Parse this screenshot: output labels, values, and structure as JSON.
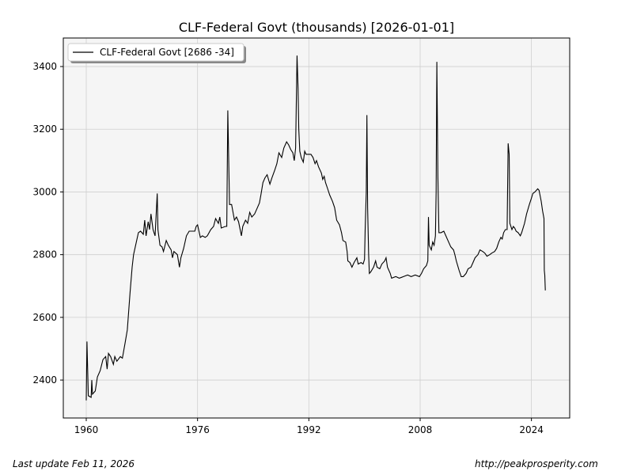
{
  "chart_data": {
    "type": "line",
    "title": "CLF-Federal Govt (thousands) [2026-01-01]",
    "xlabel": "",
    "ylabel": "",
    "xlim": [
      1956.7,
      2029.5
    ],
    "ylim": [
      2279,
      3491
    ],
    "xticks": [
      1960,
      1976,
      1992,
      2008,
      2024
    ],
    "yticks": [
      2400,
      2600,
      2800,
      3000,
      3200,
      3400
    ],
    "grid": true,
    "legend_position": "top-left",
    "series": [
      {
        "name": "CLF-Federal Govt [2686 -34]",
        "color": "#000000",
        "points": [
          [
            1960.0,
            2335
          ],
          [
            1960.1,
            2523
          ],
          [
            1960.3,
            2350
          ],
          [
            1960.7,
            2345
          ],
          [
            1960.8,
            2400
          ],
          [
            1960.9,
            2355
          ],
          [
            1961.3,
            2365
          ],
          [
            1961.6,
            2410
          ],
          [
            1962.0,
            2430
          ],
          [
            1962.4,
            2465
          ],
          [
            1962.8,
            2475
          ],
          [
            1963.0,
            2435
          ],
          [
            1963.2,
            2485
          ],
          [
            1963.5,
            2475
          ],
          [
            1963.9,
            2450
          ],
          [
            1964.1,
            2475
          ],
          [
            1964.4,
            2460
          ],
          [
            1964.9,
            2475
          ],
          [
            1965.2,
            2470
          ],
          [
            1965.6,
            2520
          ],
          [
            1965.9,
            2560
          ],
          [
            1966.3,
            2680
          ],
          [
            1966.6,
            2760
          ],
          [
            1966.8,
            2800
          ],
          [
            1967.2,
            2840
          ],
          [
            1967.5,
            2870
          ],
          [
            1967.8,
            2875
          ],
          [
            1968.2,
            2865
          ],
          [
            1968.4,
            2910
          ],
          [
            1968.6,
            2860
          ],
          [
            1968.9,
            2905
          ],
          [
            1969.1,
            2880
          ],
          [
            1969.3,
            2930
          ],
          [
            1969.6,
            2880
          ],
          [
            1969.9,
            2860
          ],
          [
            1970.2,
            2995
          ],
          [
            1970.3,
            2880
          ],
          [
            1970.6,
            2830
          ],
          [
            1970.9,
            2825
          ],
          [
            1971.1,
            2810
          ],
          [
            1971.5,
            2845
          ],
          [
            1971.8,
            2830
          ],
          [
            1972.2,
            2815
          ],
          [
            1972.4,
            2790
          ],
          [
            1972.6,
            2810
          ],
          [
            1973.1,
            2800
          ],
          [
            1973.4,
            2760
          ],
          [
            1973.6,
            2790
          ],
          [
            1974.0,
            2820
          ],
          [
            1974.4,
            2860
          ],
          [
            1974.8,
            2875
          ],
          [
            1975.2,
            2875
          ],
          [
            1975.6,
            2875
          ],
          [
            1975.8,
            2890
          ],
          [
            1976.0,
            2895
          ],
          [
            1976.4,
            2855
          ],
          [
            1976.7,
            2860
          ],
          [
            1977.1,
            2855
          ],
          [
            1977.4,
            2860
          ],
          [
            1977.9,
            2880
          ],
          [
            1978.3,
            2890
          ],
          [
            1978.6,
            2915
          ],
          [
            1979.0,
            2900
          ],
          [
            1979.2,
            2920
          ],
          [
            1979.4,
            2885
          ],
          [
            1980.0,
            2890
          ],
          [
            1980.2,
            2890
          ],
          [
            1980.35,
            3260
          ],
          [
            1980.5,
            3080
          ],
          [
            1980.6,
            2960
          ],
          [
            1980.9,
            2960
          ],
          [
            1981.3,
            2910
          ],
          [
            1981.6,
            2920
          ],
          [
            1981.9,
            2905
          ],
          [
            1982.3,
            2860
          ],
          [
            1982.5,
            2890
          ],
          [
            1982.9,
            2910
          ],
          [
            1983.2,
            2900
          ],
          [
            1983.5,
            2935
          ],
          [
            1983.8,
            2920
          ],
          [
            1984.2,
            2930
          ],
          [
            1984.6,
            2950
          ],
          [
            1984.9,
            2965
          ],
          [
            1985.1,
            2990
          ],
          [
            1985.4,
            3030
          ],
          [
            1985.7,
            3045
          ],
          [
            1986.0,
            3055
          ],
          [
            1986.4,
            3025
          ],
          [
            1986.7,
            3045
          ],
          [
            1987.1,
            3070
          ],
          [
            1987.4,
            3090
          ],
          [
            1987.7,
            3125
          ],
          [
            1988.1,
            3110
          ],
          [
            1988.4,
            3140
          ],
          [
            1988.8,
            3160
          ],
          [
            1989.1,
            3150
          ],
          [
            1989.4,
            3135
          ],
          [
            1989.7,
            3125
          ],
          [
            1989.9,
            3100
          ],
          [
            1990.1,
            3140
          ],
          [
            1990.3,
            3435
          ],
          [
            1990.45,
            3330
          ],
          [
            1990.55,
            3200
          ],
          [
            1990.7,
            3130
          ],
          [
            1990.9,
            3110
          ],
          [
            1991.2,
            3095
          ],
          [
            1991.4,
            3130
          ],
          [
            1991.6,
            3120
          ],
          [
            1991.9,
            3120
          ],
          [
            1992.3,
            3120
          ],
          [
            1992.6,
            3110
          ],
          [
            1992.9,
            3090
          ],
          [
            1993.1,
            3100
          ],
          [
            1993.4,
            3080
          ],
          [
            1993.8,
            3060
          ],
          [
            1994.0,
            3040
          ],
          [
            1994.2,
            3050
          ],
          [
            1994.4,
            3030
          ],
          [
            1994.7,
            3010
          ],
          [
            1995.0,
            2990
          ],
          [
            1995.4,
            2970
          ],
          [
            1995.7,
            2950
          ],
          [
            1996.0,
            2910
          ],
          [
            1996.4,
            2895
          ],
          [
            1996.7,
            2870
          ],
          [
            1996.9,
            2845
          ],
          [
            1997.3,
            2840
          ],
          [
            1997.5,
            2810
          ],
          [
            1997.6,
            2780
          ],
          [
            1997.9,
            2775
          ],
          [
            1998.2,
            2760
          ],
          [
            1998.5,
            2775
          ],
          [
            1998.9,
            2790
          ],
          [
            1999.1,
            2770
          ],
          [
            1999.5,
            2775
          ],
          [
            1999.8,
            2770
          ],
          [
            2000.0,
            2785
          ],
          [
            2000.1,
            2880
          ],
          [
            2000.25,
            3000
          ],
          [
            2000.35,
            3245
          ],
          [
            2000.45,
            2950
          ],
          [
            2000.6,
            2800
          ],
          [
            2000.7,
            2740
          ],
          [
            2000.9,
            2745
          ],
          [
            2001.3,
            2760
          ],
          [
            2001.6,
            2780
          ],
          [
            2001.8,
            2760
          ],
          [
            2002.2,
            2755
          ],
          [
            2002.5,
            2770
          ],
          [
            2002.9,
            2780
          ],
          [
            2003.1,
            2790
          ],
          [
            2003.3,
            2760
          ],
          [
            2003.7,
            2740
          ],
          [
            2003.9,
            2725
          ],
          [
            2004.5,
            2730
          ],
          [
            2005.0,
            2725
          ],
          [
            2005.6,
            2730
          ],
          [
            2006.2,
            2735
          ],
          [
            2006.7,
            2730
          ],
          [
            2007.3,
            2735
          ],
          [
            2007.9,
            2730
          ],
          [
            2008.2,
            2740
          ],
          [
            2008.5,
            2755
          ],
          [
            2008.9,
            2765
          ],
          [
            2009.1,
            2780
          ],
          [
            2009.2,
            2920
          ],
          [
            2009.3,
            2830
          ],
          [
            2009.6,
            2815
          ],
          [
            2009.8,
            2840
          ],
          [
            2010.0,
            2830
          ],
          [
            2010.2,
            2860
          ],
          [
            2010.3,
            3000
          ],
          [
            2010.4,
            3415
          ],
          [
            2010.55,
            3050
          ],
          [
            2010.7,
            2870
          ],
          [
            2011.0,
            2870
          ],
          [
            2011.4,
            2875
          ],
          [
            2011.7,
            2860
          ],
          [
            2012.1,
            2840
          ],
          [
            2012.4,
            2825
          ],
          [
            2012.8,
            2815
          ],
          [
            2013.0,
            2800
          ],
          [
            2013.2,
            2780
          ],
          [
            2013.6,
            2750
          ],
          [
            2013.9,
            2730
          ],
          [
            2014.2,
            2730
          ],
          [
            2014.6,
            2740
          ],
          [
            2014.9,
            2755
          ],
          [
            2015.3,
            2760
          ],
          [
            2015.6,
            2775
          ],
          [
            2015.9,
            2790
          ],
          [
            2016.3,
            2800
          ],
          [
            2016.6,
            2815
          ],
          [
            2017.0,
            2810
          ],
          [
            2017.3,
            2805
          ],
          [
            2017.6,
            2795
          ],
          [
            2018.0,
            2800
          ],
          [
            2018.3,
            2805
          ],
          [
            2018.7,
            2810
          ],
          [
            2019.0,
            2820
          ],
          [
            2019.3,
            2840
          ],
          [
            2019.6,
            2855
          ],
          [
            2019.8,
            2850
          ],
          [
            2020.0,
            2870
          ],
          [
            2020.25,
            2880
          ],
          [
            2020.5,
            2880
          ],
          [
            2020.65,
            3155
          ],
          [
            2020.8,
            3120
          ],
          [
            2020.9,
            2900
          ],
          [
            2021.2,
            2880
          ],
          [
            2021.4,
            2890
          ],
          [
            2021.6,
            2885
          ],
          [
            2021.8,
            2875
          ],
          [
            2022.1,
            2870
          ],
          [
            2022.4,
            2860
          ],
          [
            2022.6,
            2870
          ],
          [
            2023.0,
            2900
          ],
          [
            2023.3,
            2930
          ],
          [
            2023.7,
            2960
          ],
          [
            2024.0,
            2980
          ],
          [
            2024.2,
            2995
          ],
          [
            2024.5,
            3000
          ],
          [
            2024.7,
            3005
          ],
          [
            2024.9,
            3010
          ],
          [
            2025.1,
            3005
          ],
          [
            2025.4,
            2970
          ],
          [
            2025.6,
            2940
          ],
          [
            2025.8,
            2915
          ],
          [
            2025.85,
            2750
          ],
          [
            2025.92,
            2735
          ],
          [
            2026.0,
            2686
          ]
        ]
      }
    ]
  },
  "footer": {
    "last_update": "Last update Feb 11, 2026",
    "source": "http://peakprosperity.com"
  }
}
